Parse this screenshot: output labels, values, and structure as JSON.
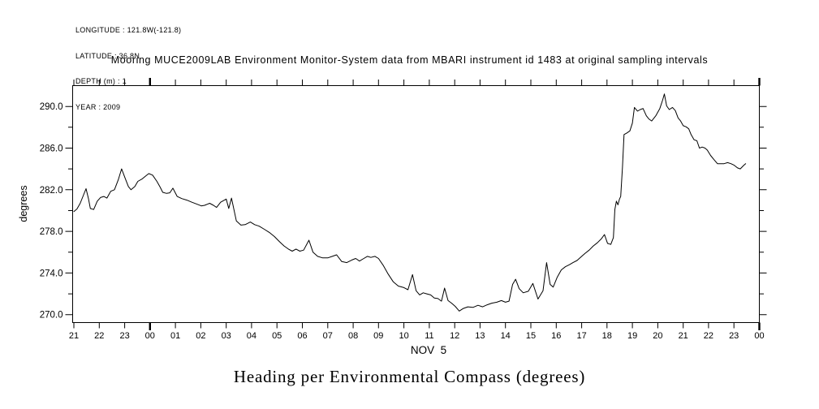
{
  "header": {
    "info_lines": [
      "LONGITUDE : 121.8W(-121.8)",
      "LATITUDE : 36.8N",
      "DEPTH (m) : 1",
      "YEAR : 2009"
    ],
    "title": "Mooring MUCE2009LAB Environment Monitor-System data from MBARI instrument id 1483 at original sampling intervals"
  },
  "caption": "Heading per Environmental Compass (degrees)",
  "chart_data": {
    "type": "line",
    "title": "Mooring MUCE2009LAB Environment Monitor-System data from MBARI instrument id 1483 at original sampling intervals",
    "ylabel": "degrees",
    "xlabel_day": "NOV  5",
    "x_unit": "hours since 21:00 Nov 4, 2009",
    "xlim": [
      0,
      27
    ],
    "ylim": [
      269.24,
      292.0
    ],
    "grid": false,
    "legend": "none",
    "line_color": "#000000",
    "x_axis": {
      "tick_labels": [
        "21",
        "22",
        "23",
        "00",
        "01",
        "02",
        "03",
        "04",
        "05",
        "06",
        "07",
        "08",
        "09",
        "10",
        "11",
        "12",
        "13",
        "14",
        "15",
        "16",
        "17",
        "18",
        "19",
        "20",
        "21",
        "22",
        "23",
        "00"
      ],
      "day_boundary_hours": [
        3,
        27
      ],
      "day_label": "NOV  5"
    },
    "y_axis": {
      "major_ticks": [
        270.0,
        274.0,
        278.0,
        282.0,
        286.0,
        290.0
      ],
      "minor_ticks": [
        272.0,
        276.0,
        280.0,
        284.0,
        288.0
      ]
    },
    "series": [
      {
        "name": "Heading (degrees)",
        "points": [
          [
            0.0,
            279.9
          ],
          [
            0.12,
            280.15
          ],
          [
            0.25,
            280.7
          ],
          [
            0.48,
            282.1
          ],
          [
            0.58,
            281.1
          ],
          [
            0.65,
            280.2
          ],
          [
            0.78,
            280.1
          ],
          [
            0.92,
            280.9
          ],
          [
            1.05,
            281.25
          ],
          [
            1.18,
            281.35
          ],
          [
            1.3,
            281.2
          ],
          [
            1.45,
            281.85
          ],
          [
            1.6,
            282.0
          ],
          [
            1.75,
            282.95
          ],
          [
            1.88,
            284.0
          ],
          [
            2.02,
            283.1
          ],
          [
            2.15,
            282.3
          ],
          [
            2.25,
            282.0
          ],
          [
            2.4,
            282.3
          ],
          [
            2.52,
            282.8
          ],
          [
            2.7,
            283.05
          ],
          [
            2.82,
            283.3
          ],
          [
            2.95,
            283.55
          ],
          [
            3.1,
            283.4
          ],
          [
            3.27,
            282.8
          ],
          [
            3.4,
            282.25
          ],
          [
            3.5,
            281.75
          ],
          [
            3.65,
            281.65
          ],
          [
            3.78,
            281.7
          ],
          [
            3.9,
            282.15
          ],
          [
            4.07,
            281.35
          ],
          [
            4.25,
            281.15
          ],
          [
            4.45,
            281.0
          ],
          [
            4.65,
            280.8
          ],
          [
            4.87,
            280.6
          ],
          [
            5.02,
            280.45
          ],
          [
            5.15,
            280.5
          ],
          [
            5.35,
            280.7
          ],
          [
            5.5,
            280.5
          ],
          [
            5.62,
            280.3
          ],
          [
            5.78,
            280.8
          ],
          [
            6.0,
            281.1
          ],
          [
            6.1,
            280.2
          ],
          [
            6.21,
            281.2
          ],
          [
            6.4,
            279.0
          ],
          [
            6.58,
            278.6
          ],
          [
            6.75,
            278.65
          ],
          [
            6.95,
            278.9
          ],
          [
            7.12,
            278.65
          ],
          [
            7.3,
            278.5
          ],
          [
            7.5,
            278.2
          ],
          [
            7.7,
            277.9
          ],
          [
            7.9,
            277.5
          ],
          [
            8.1,
            277.0
          ],
          [
            8.28,
            276.6
          ],
          [
            8.45,
            276.3
          ],
          [
            8.6,
            276.1
          ],
          [
            8.75,
            276.3
          ],
          [
            8.9,
            276.1
          ],
          [
            9.05,
            276.2
          ],
          [
            9.26,
            277.15
          ],
          [
            9.42,
            276.0
          ],
          [
            9.6,
            275.6
          ],
          [
            9.8,
            275.45
          ],
          [
            10.0,
            275.45
          ],
          [
            10.18,
            275.6
          ],
          [
            10.35,
            275.75
          ],
          [
            10.55,
            275.1
          ],
          [
            10.75,
            275.0
          ],
          [
            10.95,
            275.25
          ],
          [
            11.1,
            275.4
          ],
          [
            11.25,
            275.15
          ],
          [
            11.42,
            275.4
          ],
          [
            11.56,
            275.6
          ],
          [
            11.7,
            275.5
          ],
          [
            11.86,
            275.6
          ],
          [
            12.0,
            275.4
          ],
          [
            12.18,
            274.75
          ],
          [
            12.38,
            273.9
          ],
          [
            12.58,
            273.15
          ],
          [
            12.78,
            272.75
          ],
          [
            13.0,
            272.6
          ],
          [
            13.16,
            272.4
          ],
          [
            13.34,
            273.85
          ],
          [
            13.48,
            272.3
          ],
          [
            13.62,
            271.9
          ],
          [
            13.76,
            272.1
          ],
          [
            13.9,
            272.0
          ],
          [
            14.05,
            271.9
          ],
          [
            14.2,
            271.6
          ],
          [
            14.34,
            271.55
          ],
          [
            14.48,
            271.3
          ],
          [
            14.6,
            272.55
          ],
          [
            14.74,
            271.35
          ],
          [
            14.88,
            271.1
          ],
          [
            15.02,
            270.8
          ],
          [
            15.18,
            270.35
          ],
          [
            15.34,
            270.6
          ],
          [
            15.52,
            270.75
          ],
          [
            15.72,
            270.7
          ],
          [
            15.92,
            270.9
          ],
          [
            16.1,
            270.75
          ],
          [
            16.28,
            270.95
          ],
          [
            16.46,
            271.1
          ],
          [
            16.66,
            271.2
          ],
          [
            16.84,
            271.35
          ],
          [
            17.0,
            271.2
          ],
          [
            17.14,
            271.3
          ],
          [
            17.28,
            272.9
          ],
          [
            17.4,
            273.4
          ],
          [
            17.54,
            272.5
          ],
          [
            17.7,
            272.1
          ],
          [
            17.9,
            272.25
          ],
          [
            18.08,
            273.0
          ],
          [
            18.28,
            271.5
          ],
          [
            18.48,
            272.3
          ],
          [
            18.62,
            275.0
          ],
          [
            18.76,
            272.9
          ],
          [
            18.88,
            272.65
          ],
          [
            19.04,
            273.6
          ],
          [
            19.2,
            274.3
          ],
          [
            19.36,
            274.6
          ],
          [
            19.52,
            274.8
          ],
          [
            19.66,
            275.0
          ],
          [
            19.82,
            275.2
          ],
          [
            19.98,
            275.55
          ],
          [
            20.14,
            275.9
          ],
          [
            20.3,
            276.2
          ],
          [
            20.46,
            276.6
          ],
          [
            20.62,
            276.9
          ],
          [
            20.78,
            277.3
          ],
          [
            20.9,
            277.7
          ],
          [
            21.02,
            276.85
          ],
          [
            21.15,
            276.75
          ],
          [
            21.25,
            277.4
          ],
          [
            21.31,
            280.1
          ],
          [
            21.37,
            280.9
          ],
          [
            21.43,
            280.55
          ],
          [
            21.49,
            281.1
          ],
          [
            21.54,
            281.35
          ],
          [
            21.61,
            284.2
          ],
          [
            21.67,
            287.3
          ],
          [
            21.78,
            287.45
          ],
          [
            21.9,
            287.65
          ],
          [
            22.0,
            288.4
          ],
          [
            22.08,
            289.9
          ],
          [
            22.2,
            289.55
          ],
          [
            22.31,
            289.7
          ],
          [
            22.42,
            289.8
          ],
          [
            22.55,
            289.1
          ],
          [
            22.65,
            288.8
          ],
          [
            22.76,
            288.6
          ],
          [
            22.92,
            289.1
          ],
          [
            23.08,
            289.8
          ],
          [
            23.19,
            290.6
          ],
          [
            23.26,
            291.2
          ],
          [
            23.35,
            290.05
          ],
          [
            23.45,
            289.7
          ],
          [
            23.58,
            289.9
          ],
          [
            23.69,
            289.6
          ],
          [
            23.8,
            288.9
          ],
          [
            23.9,
            288.6
          ],
          [
            24.0,
            288.15
          ],
          [
            24.11,
            288.05
          ],
          [
            24.22,
            287.85
          ],
          [
            24.31,
            287.3
          ],
          [
            24.43,
            286.8
          ],
          [
            24.54,
            286.7
          ],
          [
            24.64,
            286.0
          ],
          [
            24.75,
            286.1
          ],
          [
            24.86,
            286.0
          ],
          [
            24.95,
            285.8
          ],
          [
            25.08,
            285.3
          ],
          [
            25.21,
            284.9
          ],
          [
            25.35,
            284.5
          ],
          [
            25.48,
            284.5
          ],
          [
            25.61,
            284.5
          ],
          [
            25.75,
            284.6
          ],
          [
            25.88,
            284.5
          ],
          [
            26.01,
            284.35
          ],
          [
            26.14,
            284.1
          ],
          [
            26.25,
            284.0
          ],
          [
            26.39,
            284.35
          ],
          [
            26.46,
            284.5
          ]
        ]
      }
    ]
  }
}
